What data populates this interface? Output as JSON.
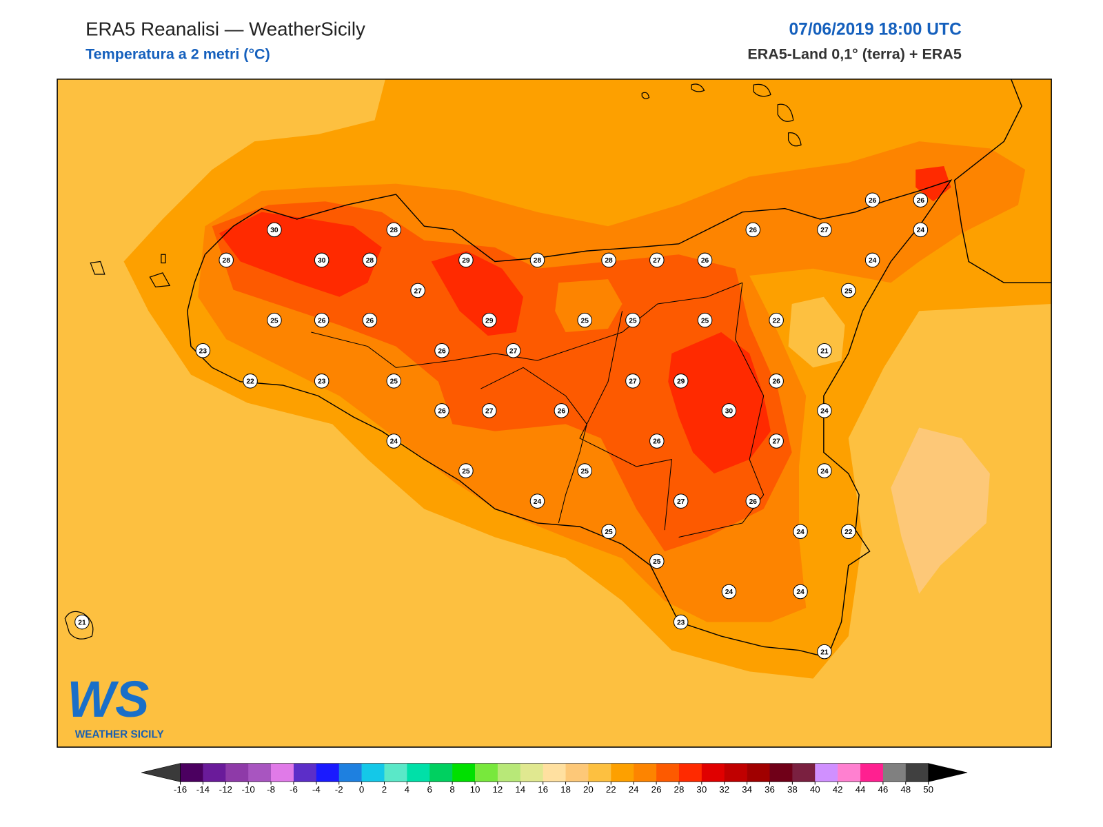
{
  "header": {
    "title": "ERA5 Reanalisi — WeatherSicily",
    "subtitle": "Temperatura a 2 metri (°C)",
    "datetime": "07/06/2019 18:00 UTC",
    "source": "ERA5-Land 0,1° (terra) + ERA5"
  },
  "stations": [
    30,
    28,
    28,
    30,
    28,
    29,
    28,
    28,
    27,
    26,
    26,
    27,
    26,
    26,
    24,
    24,
    25,
    27,
    25,
    26,
    26,
    29,
    25,
    25,
    25,
    22,
    21,
    23,
    26,
    27,
    22,
    23,
    25,
    27,
    29,
    26,
    26,
    27,
    26,
    30,
    24,
    24,
    26,
    27,
    25,
    25,
    24,
    24,
    27,
    26,
    25,
    24,
    22,
    25,
    24,
    24,
    23,
    21,
    21
  ],
  "colorbar": {
    "ticks": [
      -16,
      -14,
      -12,
      -10,
      -8,
      -6,
      -4,
      -2,
      0,
      2,
      4,
      6,
      8,
      10,
      12,
      14,
      16,
      18,
      20,
      22,
      24,
      26,
      28,
      30,
      32,
      34,
      36,
      38,
      40,
      42,
      44,
      46,
      48,
      50
    ],
    "colors": [
      "#4b0060",
      "#6a1b9a",
      "#8e3aa8",
      "#a855c0",
      "#e07ae8",
      "#5c2ec8",
      "#1a1aff",
      "#1e80e0",
      "#14c8e8",
      "#5ae8c8",
      "#00e0a8",
      "#00d060",
      "#00e000",
      "#78e83c",
      "#b8e878",
      "#e0e890",
      "#ffe0a0",
      "#fdc878",
      "#fdc040",
      "#fda000",
      "#fd8400",
      "#fd5a00",
      "#ff2a00",
      "#e00000",
      "#c00000",
      "#a00000",
      "#700018",
      "#7a2040",
      "#d090ff",
      "#ff80d0",
      "#ff2090",
      "#808080",
      "#404040"
    ],
    "under_color": "#3a3a3a",
    "over_color": "#000000"
  },
  "logo": {
    "mark": "WS",
    "text": "WEATHER SICILY"
  }
}
